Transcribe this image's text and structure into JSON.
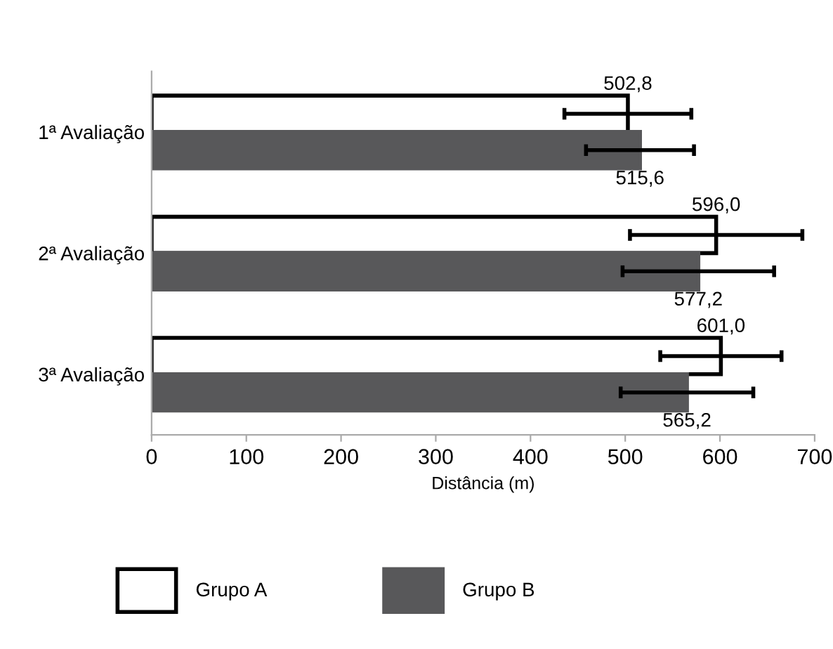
{
  "chart_data": {
    "type": "bar",
    "orientation": "horizontal",
    "xlabel": "Distância (m)",
    "categories": [
      "1ª Avaliação",
      "2ª Avaliação",
      "3ª Avaliação"
    ],
    "xlim": [
      0,
      700
    ],
    "xticks": [
      0,
      100,
      200,
      300,
      400,
      500,
      600,
      700
    ],
    "grid": false,
    "legend": "bottom",
    "series": [
      {
        "name": "Grupo A",
        "color": "#ffffff",
        "values": [
          502.8,
          596.0,
          601.0
        ],
        "errors": [
          67,
          91,
          64
        ],
        "value_labels": [
          "502,8",
          "596,0",
          "601,0"
        ]
      },
      {
        "name": "Grupo B",
        "color": "#58585a",
        "values": [
          515.6,
          577.2,
          565.2
        ],
        "errors": [
          57,
          80,
          70
        ],
        "value_labels": [
          "515,6",
          "577,2",
          "565,2"
        ]
      }
    ]
  }
}
